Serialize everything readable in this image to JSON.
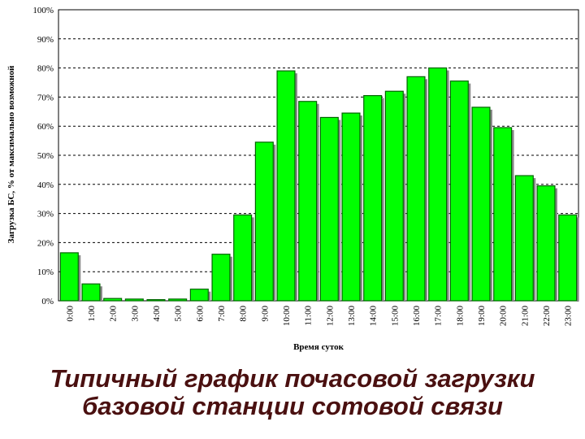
{
  "chart_data": {
    "type": "bar",
    "title": [
      "Типичный график почасовой загрузки",
      "базовой станции сотовой связи"
    ],
    "x_label": "Время суток",
    "y_label": "Загрузка БС, % от максимально возможной",
    "categories": [
      "0:00",
      "1:00",
      "2:00",
      "3:00",
      "4:00",
      "5:00",
      "6:00",
      "7:00",
      "8:00",
      "9:00",
      "10:00",
      "11:00",
      "12:00",
      "13:00",
      "14:00",
      "15:00",
      "16:00",
      "17:00",
      "18:00",
      "19:00",
      "20:00",
      "21:00",
      "22:00",
      "23:00"
    ],
    "values": [
      16.5,
      5.8,
      0.8,
      0.6,
      0.4,
      0.6,
      4,
      16,
      29.5,
      54.5,
      79,
      68.5,
      63,
      64.5,
      70.5,
      72,
      77,
      80,
      75.5,
      66.5,
      59.5,
      43,
      39.5,
      29.5
    ],
    "color": "#00ff00",
    "ylim": [
      0,
      100
    ],
    "yticks": [
      {
        "value": 0,
        "label": "0%"
      },
      {
        "value": 10,
        "label": "10%"
      },
      {
        "value": 20,
        "label": "20%"
      },
      {
        "value": 30,
        "label": "30%"
      },
      {
        "value": 40,
        "label": "40%"
      },
      {
        "value": 50,
        "label": "50%"
      },
      {
        "value": 60,
        "label": "60%"
      },
      {
        "value": 70,
        "label": "70%"
      },
      {
        "value": 80,
        "label": "80%"
      },
      {
        "value": 90,
        "label": "90%"
      },
      {
        "value": 100,
        "label": "100%"
      }
    ],
    "grid": true
  }
}
